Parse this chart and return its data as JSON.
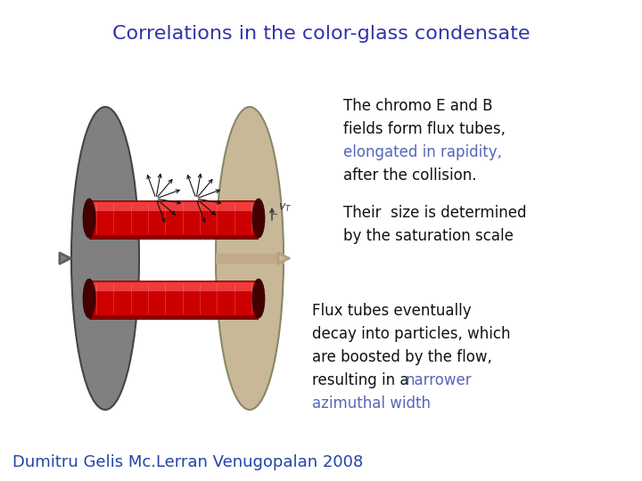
{
  "title": "Correlations in the color-glass condensate",
  "title_color": "#3333aa",
  "title_fontsize": 16,
  "text1_line1": "The chromo E and B",
  "text1_line2": "fields form flux tubes,",
  "text1_line3_colored": "elongated in rapidity,",
  "text1_line3_color": "#5566bb",
  "text1_line4": "after the collision.",
  "text2_line1": "Their  size is determined",
  "text2_line2": "by the saturation scale",
  "text3_line1": "Flux tubes eventually",
  "text3_line2": "decay into particles, which",
  "text3_line3": "are boosted by the flow,",
  "text3_line4_prefix": "resulting in a ",
  "text3_line4_colored": "narrower",
  "text3_line5_colored": "azimuthal width",
  "text3_color": "#5566bb",
  "footer": "Dumitru Gelis Mc.Lerran Venugopalan 2008",
  "footer_color": "#2244aa",
  "footer_fontsize": 13,
  "bg_color": "#ffffff",
  "text_fontsize": 12,
  "text_color": "#111111"
}
